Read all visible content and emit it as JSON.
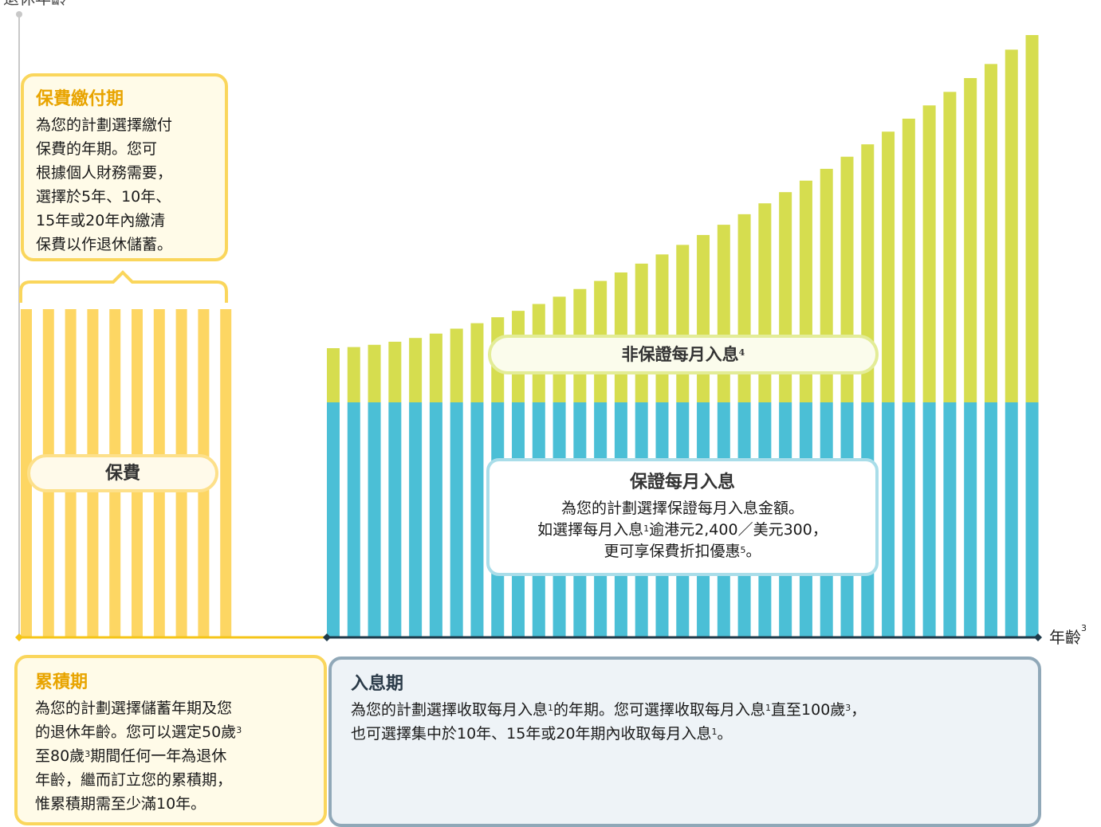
{
  "top_axis_label": "退休年齡",
  "axis_label": "年齡",
  "axis_label_sup": "3",
  "payment_card": {
    "title": "保費繳付期",
    "lines": [
      "為您的計劃選擇繳付",
      "保費的年期。您可",
      "根據個人財務需要，",
      "選擇於5年、10年、",
      "15年或20年內繳清",
      "保費以作退休儲蓄。"
    ]
  },
  "premium_label": "保費",
  "nonguaranteed": {
    "label": "非保證每月入息",
    "sup": "4"
  },
  "guaranteed": {
    "title": "保證每月入息",
    "line1": "為您的計劃選擇保證每月入息金額。",
    "line2a": "如選擇每月入息",
    "line2sup": "1",
    "line2b": "逾港元2,400／美元300，",
    "line3a": "更可享保費折扣優惠",
    "line3sup": "5",
    "line3b": "。"
  },
  "accumulation": {
    "title": "累積期",
    "l1": "為您的計劃選擇儲蓄年期及您",
    "l2a": "的退休年齡。您可以選定50歲",
    "l2sup": "3",
    "l3a": "至80歲",
    "l3sup": "3",
    "l3b": "期間任何一年為退休",
    "l4": "年齡，繼而訂立您的累積期，",
    "l5": "惟累積期需至少滿10年。"
  },
  "income_period": {
    "title": "入息期",
    "l1a": "為您的計劃選擇收取每月入息",
    "l1sup1": "1",
    "l1b": "的年期。您可選擇收取每月入息",
    "l1sup2": "1",
    "l1c": "直至100歲",
    "l1sup3": "3",
    "l1d": "，",
    "l2a": "也可選擇集中於10年、15年或20年期內收取每月入息",
    "l2sup": "1",
    "l2b": "。"
  },
  "colors": {
    "premium_yellow": "#fdd663",
    "guaranteed_blue": "#4bbfd6",
    "nonguaranteed_green": "#d6dd4f",
    "axis_dark": "#1f3a4a",
    "axis_yellow": "#f5c518"
  },
  "chart_data": {
    "type": "bar",
    "premium_bar_count": 10,
    "income_bar_count": 35,
    "guaranteed_level": 1,
    "nonguaranteed_growth": "increasing"
  }
}
